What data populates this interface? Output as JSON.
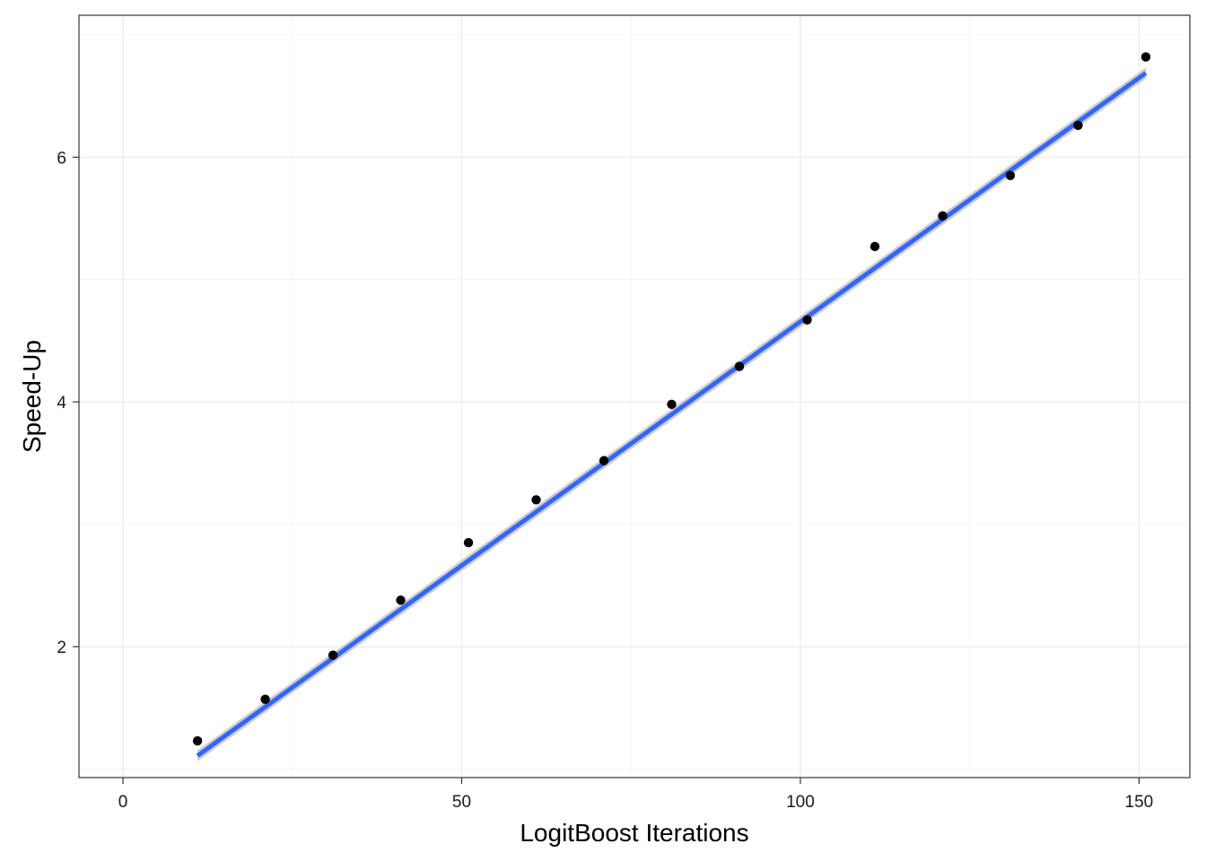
{
  "chart_data": {
    "type": "scatter",
    "title": "",
    "xlabel": "LogitBoost Iterations",
    "ylabel": "Speed-Up",
    "xlim": [
      -6.5,
      157.5
    ],
    "ylim": [
      0.93,
      7.16
    ],
    "x_ticks": [
      0,
      50,
      100,
      150
    ],
    "x_tick_labels": [
      "0",
      "50",
      "100",
      "150"
    ],
    "y_ticks": [
      2,
      4,
      6
    ],
    "y_tick_labels": [
      "2",
      "4",
      "6"
    ],
    "x_minor_ticks": [
      25,
      75,
      125
    ],
    "y_minor_ticks": [
      1,
      3,
      5,
      7
    ],
    "grid": true,
    "theme": "bw",
    "points": {
      "x": [
        11,
        21,
        31,
        41,
        51,
        61,
        71,
        81,
        91,
        101,
        111,
        121,
        131,
        141,
        151
      ],
      "y": [
        1.23,
        1.57,
        1.93,
        2.38,
        2.85,
        3.2,
        3.52,
        3.98,
        4.29,
        4.67,
        5.27,
        5.52,
        5.85,
        6.26,
        6.82
      ]
    },
    "fit": {
      "method": "lm",
      "x_range": [
        11,
        151
      ],
      "intercept": 0.6705,
      "slope": 0.03985,
      "se_band": 0.045
    },
    "colors": {
      "points": "#000000",
      "fit_line": "#3366FF",
      "se_band": "#c8c8c8",
      "grid_major": "#ebebeb",
      "grid_minor": "#f5f5f5",
      "panel_border": "#333333"
    }
  }
}
